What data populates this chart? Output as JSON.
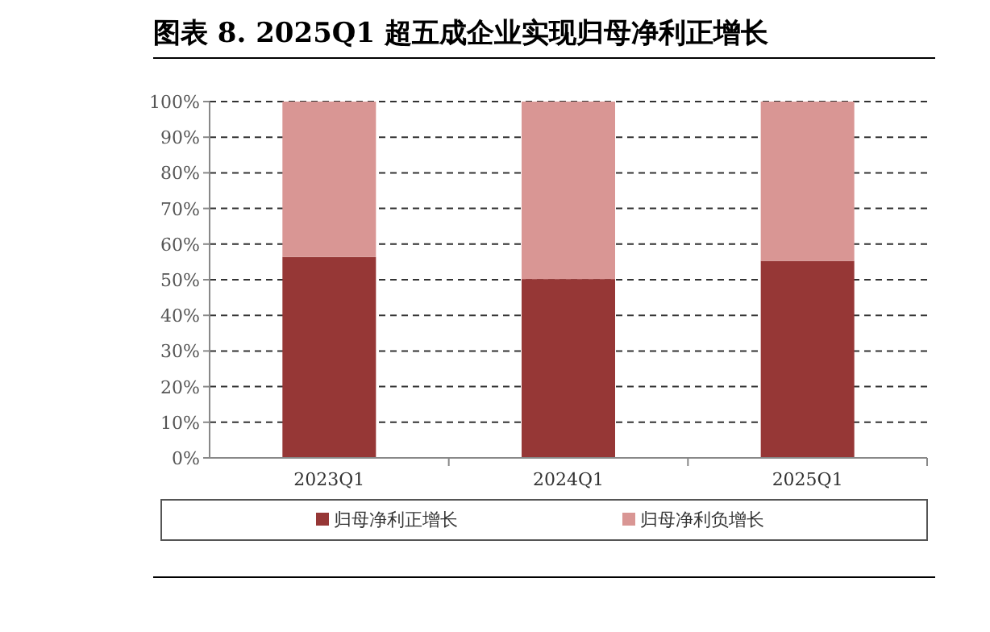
{
  "chart_data": {
    "type": "bar",
    "stacked": true,
    "title": "图表 8. 2025Q1 超五成企业实现归母净利正增长",
    "categories": [
      "2023Q1",
      "2024Q1",
      "2025Q1"
    ],
    "series": [
      {
        "name": "归母净利正增长",
        "color": "#963736",
        "values": [
          56.4,
          50.2,
          55.3
        ]
      },
      {
        "name": "归母净利负增长",
        "color": "#d99694",
        "values": [
          43.6,
          49.8,
          44.7
        ]
      }
    ],
    "ylim": [
      0,
      100
    ],
    "yticks": [
      {
        "value": 0,
        "label": "0%"
      },
      {
        "value": 10,
        "label": "10%"
      },
      {
        "value": 20,
        "label": "20%"
      },
      {
        "value": 30,
        "label": "30%"
      },
      {
        "value": 40,
        "label": "40%"
      },
      {
        "value": 50,
        "label": "50%"
      },
      {
        "value": 60,
        "label": "60%"
      },
      {
        "value": 70,
        "label": "70%"
      },
      {
        "value": 80,
        "label": "80%"
      },
      {
        "value": 90,
        "label": "90%"
      },
      {
        "value": 100,
        "label": "100%"
      }
    ],
    "grid": "y",
    "legend": "bottom"
  }
}
